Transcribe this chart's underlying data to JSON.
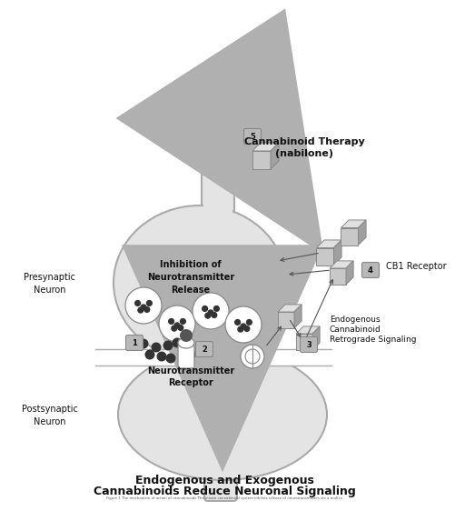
{
  "title_line1": "Endogenous and Exogenous",
  "title_line2": "Cannabinoids Reduce Neuronal Signaling",
  "caption": "Figure 1 The mechanism of action of cannabinoids The innate cannabinoid system inhibits release of neurotransmitters via a multi-step retrograde signaling pathway b inhibiting...",
  "label_presynaptic": "Presynaptic\nNeuron",
  "label_postsynaptic": "Postsynaptic\nNeuron",
  "label_inhibition": "Inhibition of\nNeurotransmitter\nRelease",
  "label_neurotransmitter_receptor": "Neurotransmitter\nReceptor",
  "label_cb1": "CB1 Receptor",
  "label_endogenous": "Endogenous\nCannabinoid\nRetrograde Signaling",
  "label_cannabinoid_therapy": "Cannabinoid Therapy\n(nabilone)",
  "bg_color": "#ffffff",
  "neuron_fill": "#e4e4e4",
  "neuron_edge": "#aaaaaa",
  "cube_face_front": "#c8c8c8",
  "cube_face_top": "#e0e0e0",
  "cube_face_right": "#a0a0a0",
  "cube_edge": "#888888",
  "arrow_thick_color": "#b0b0b0",
  "arrow_thin_color": "#555555",
  "dot_color": "#333333",
  "text_color": "#111111",
  "badge_fill": "#b8b8b8",
  "badge_edge": "#888888"
}
